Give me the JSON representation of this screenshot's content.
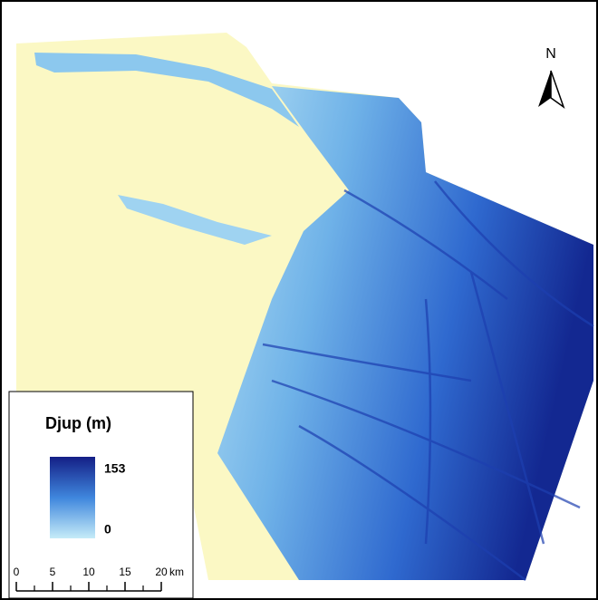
{
  "north_arrow": {
    "label": "N"
  },
  "legend": {
    "title": "Djup (m)",
    "max": 153,
    "min": 0
  },
  "scale_bar": {
    "ticks": [
      0,
      5,
      10,
      15,
      20
    ],
    "unit": "km"
  }
}
